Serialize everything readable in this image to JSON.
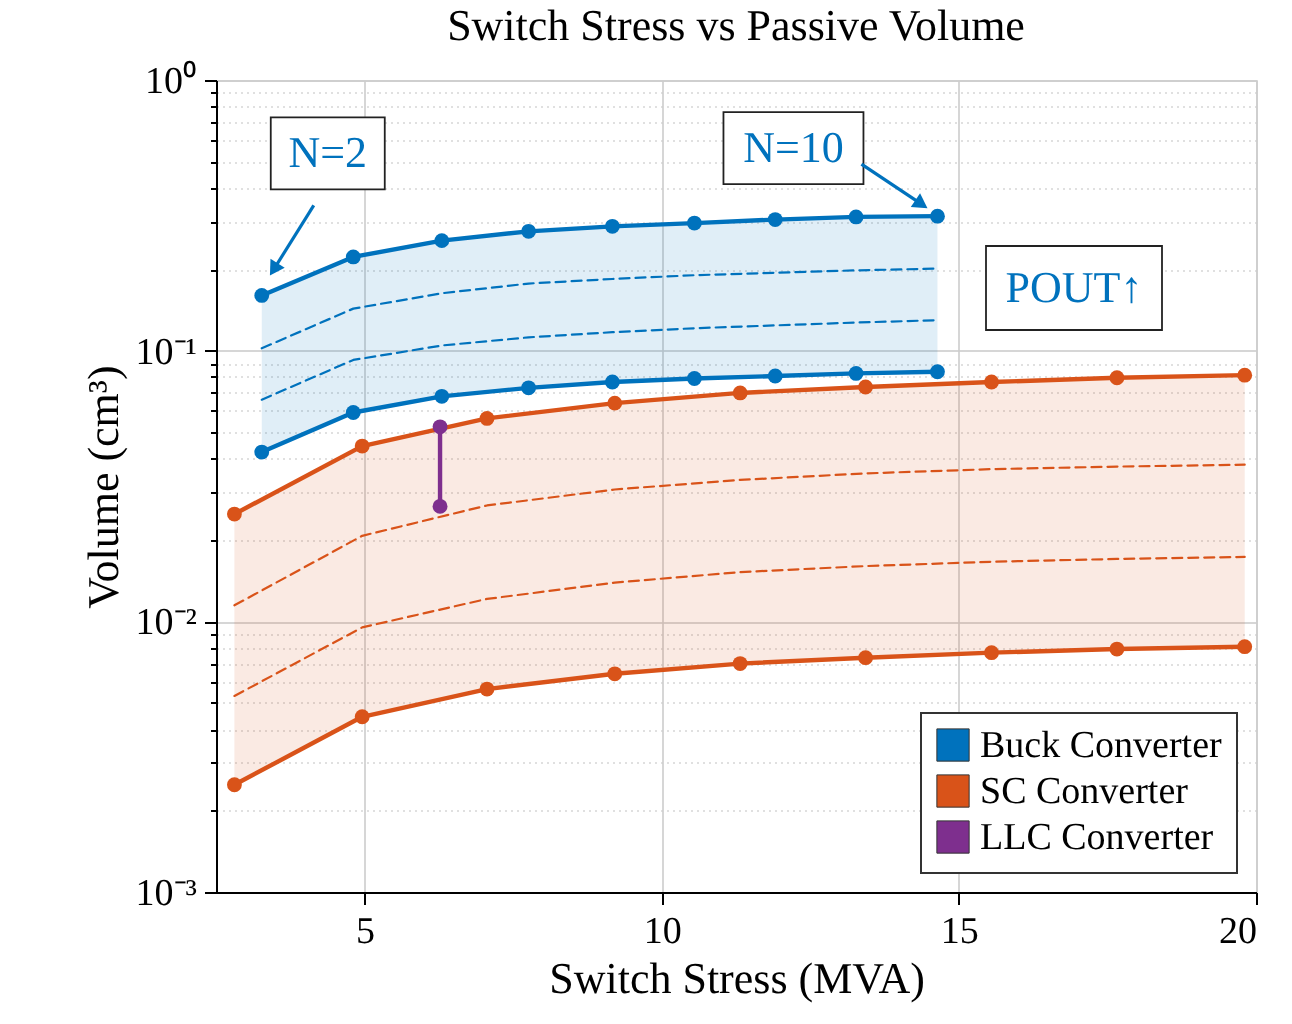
{
  "chart_data": {
    "type": "line",
    "title": "Switch Stress vs Passive Volume",
    "xlabel": "Switch Stress (MVA)",
    "ylabel": "Volume (cm³)",
    "xlim": [
      2.5,
      20
    ],
    "xticks": [
      5,
      10,
      15,
      20
    ],
    "ylim": [
      0.001,
      1
    ],
    "yticks": [
      {
        "value": 0.001,
        "label": "10⁻³"
      },
      {
        "value": 0.002,
        "label": null
      },
      {
        "value": 0.003,
        "label": null
      },
      {
        "value": 0.004,
        "label": null
      },
      {
        "value": 0.005,
        "label": null
      },
      {
        "value": 0.006,
        "label": null
      },
      {
        "value": 0.007,
        "label": null
      },
      {
        "value": 0.008,
        "label": null
      },
      {
        "value": 0.009,
        "label": null
      },
      {
        "value": 0.01,
        "label": "10⁻²"
      },
      {
        "value": 0.02,
        "label": null
      },
      {
        "value": 0.03,
        "label": null
      },
      {
        "value": 0.04,
        "label": null
      },
      {
        "value": 0.05,
        "label": null
      },
      {
        "value": 0.06,
        "label": null
      },
      {
        "value": 0.07,
        "label": null
      },
      {
        "value": 0.08,
        "label": null
      },
      {
        "value": 0.09,
        "label": null
      },
      {
        "value": 0.1,
        "label": "10⁻¹"
      },
      {
        "value": 0.2,
        "label": null
      },
      {
        "value": 0.3,
        "label": null
      },
      {
        "value": 0.4,
        "label": null
      },
      {
        "value": 0.5,
        "label": null
      },
      {
        "value": 0.6,
        "label": null
      },
      {
        "value": 0.7,
        "label": null
      },
      {
        "value": 0.8,
        "label": null
      },
      {
        "value": 0.9,
        "label": null
      },
      {
        "value": 1,
        "label": "10⁰"
      }
    ],
    "log": "y",
    "grid": true,
    "legend": "bottom right",
    "series": [
      {
        "name": "Buck Converter",
        "color": "#0072bd",
        "marker": "circle",
        "line_style": "solid",
        "x": [
          3.27,
          4.81,
          6.3,
          7.76,
          9.17,
          10.55,
          11.91,
          13.27,
          14.64
        ],
        "values": [
          0.16,
          0.222,
          0.255,
          0.276,
          0.288,
          0.296,
          0.305,
          0.312,
          0.314
        ],
        "lower": [
          0.0422,
          0.0591,
          0.0678,
          0.0729,
          0.0766,
          0.0789,
          0.0806,
          0.0824,
          0.0836
        ],
        "upper": [
          0.16,
          0.222,
          0.255,
          0.276,
          0.288,
          0.296,
          0.305,
          0.312,
          0.314
        ]
      },
      {
        "type": "line",
        "color": "#0072bd",
        "marker": "none",
        "line_style": "dashed",
        "x": [
          3.27,
          4.81,
          6.3,
          7.76,
          9.17,
          10.55,
          11.91,
          13.27,
          14.64
        ],
        "values": [
          0.102,
          0.143,
          0.163,
          0.177,
          0.184,
          0.19,
          0.194,
          0.198,
          0.201
        ]
      },
      {
        "type": "line",
        "color": "#0072bd",
        "marker": "none",
        "line_style": "dashed",
        "x": [
          3.27,
          4.81,
          6.3,
          7.76,
          9.17,
          10.55,
          11.91,
          13.27,
          14.64
        ],
        "values": [
          0.0659,
          0.0924,
          0.1045,
          0.112,
          0.117,
          0.121,
          0.124,
          0.127,
          0.1296
        ]
      },
      {
        "type": "line",
        "color": "#0072bd",
        "marker": "circle",
        "line_style": "solid",
        "x": [
          3.27,
          4.81,
          6.3,
          7.76,
          9.17,
          10.55,
          11.91,
          13.27,
          14.64
        ],
        "values": [
          0.0422,
          0.0591,
          0.0678,
          0.0729,
          0.0766,
          0.0789,
          0.0806,
          0.0824,
          0.0836
        ]
      },
      {
        "name": "SC Converter",
        "color": "#d95319",
        "marker": "circle",
        "line_style": "solid",
        "x": [
          2.81,
          4.96,
          7.06,
          9.21,
          11.32,
          13.43,
          15.55,
          17.66,
          19.81
        ],
        "values": [
          0.0249,
          0.0444,
          0.0562,
          0.064,
          0.0698,
          0.0734,
          0.0766,
          0.0794,
          0.0812
        ],
        "lower": [
          0.00249,
          0.00444,
          0.00562,
          0.0064,
          0.00698,
          0.00734,
          0.00766,
          0.0079,
          0.00806
        ],
        "upper": [
          0.0249,
          0.0444,
          0.0562,
          0.064,
          0.0698,
          0.0734,
          0.0766,
          0.0794,
          0.0812
        ]
      },
      {
        "type": "line",
        "color": "#d95319",
        "marker": "none",
        "line_style": "dashed",
        "x": [
          2.81,
          4.96,
          7.06,
          9.21,
          11.32,
          13.43,
          15.55,
          17.66,
          19.81
        ],
        "values": [
          0.01146,
          0.0207,
          0.0268,
          0.0307,
          0.0333,
          0.0352,
          0.0365,
          0.0373,
          0.0379
        ]
      },
      {
        "type": "line",
        "color": "#d95319",
        "marker": "none",
        "line_style": "dashed",
        "x": [
          2.81,
          4.96,
          7.06,
          9.21,
          11.32,
          13.43,
          15.55,
          17.66,
          19.81
        ],
        "values": [
          0.0053,
          0.0095,
          0.0121,
          0.0139,
          0.0152,
          0.016,
          0.0166,
          0.017,
          0.0173
        ]
      },
      {
        "type": "line",
        "color": "#d95319",
        "marker": "circle",
        "line_style": "solid",
        "x": [
          2.81,
          4.96,
          7.06,
          9.21,
          11.32,
          13.43,
          15.55,
          17.66,
          19.81
        ],
        "values": [
          0.00249,
          0.00444,
          0.00562,
          0.0064,
          0.00698,
          0.00734,
          0.00766,
          0.0079,
          0.00806
        ]
      },
      {
        "name": "LLC Converter",
        "color": "#7e2f8e",
        "marker": "circle",
        "line_style": "solid",
        "x": [
          6.27,
          6.27
        ],
        "values": [
          0.0523,
          0.0266
        ]
      }
    ],
    "annotations": [
      {
        "text": "N=2",
        "x": 3.27,
        "y": 0.16
      },
      {
        "text": "N=10",
        "x": 14.64,
        "y": 0.314
      },
      "POUT↑"
    ]
  }
}
